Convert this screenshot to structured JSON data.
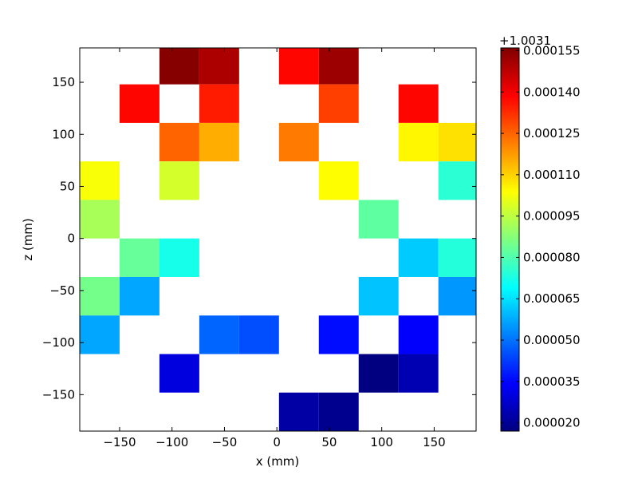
{
  "chart_data": {
    "type": "heatmap",
    "xlabel": "x (mm)",
    "ylabel": "z (mm)",
    "xlim": [
      -188,
      190
    ],
    "ylim": [
      -185,
      183
    ],
    "x_ticks": [
      -150,
      -100,
      -50,
      0,
      50,
      100,
      150
    ],
    "x_tick_labels": [
      "−150",
      "−100",
      "−50",
      "0",
      "50",
      "100",
      "150"
    ],
    "y_ticks": [
      -150,
      -100,
      -50,
      0,
      50,
      100,
      150
    ],
    "y_tick_labels": [
      "−150",
      "−100",
      "−50",
      "0",
      "50",
      "100",
      "150"
    ],
    "x_edges": [
      -188,
      -150,
      -112,
      -74,
      -36,
      2,
      40,
      78,
      116,
      154,
      192
    ],
    "z_edges": [
      -185,
      -148,
      -111,
      -74,
      -37,
      0,
      37,
      74,
      111,
      148,
      185
    ],
    "cells": [
      {
        "col": 2,
        "row": 9,
        "value": 0.000155
      },
      {
        "col": 3,
        "row": 9,
        "value": 0.00015
      },
      {
        "col": 5,
        "row": 9,
        "value": 0.000138
      },
      {
        "col": 6,
        "row": 9,
        "value": 0.000152
      },
      {
        "col": 1,
        "row": 8,
        "value": 0.000138
      },
      {
        "col": 3,
        "row": 8,
        "value": 0.000135
      },
      {
        "col": 6,
        "row": 8,
        "value": 0.00013
      },
      {
        "col": 8,
        "row": 8,
        "value": 0.000138
      },
      {
        "col": 2,
        "row": 7,
        "value": 0.000125
      },
      {
        "col": 3,
        "row": 7,
        "value": 0.000115
      },
      {
        "col": 5,
        "row": 7,
        "value": 0.000122
      },
      {
        "col": 8,
        "row": 7,
        "value": 0.000105
      },
      {
        "col": 9,
        "row": 7,
        "value": 0.000108
      },
      {
        "col": 0,
        "row": 6,
        "value": 0.000103
      },
      {
        "col": 2,
        "row": 6,
        "value": 9.8e-05
      },
      {
        "col": 6,
        "row": 6,
        "value": 0.000104
      },
      {
        "col": 9,
        "row": 6,
        "value": 7.5e-05
      },
      {
        "col": 0,
        "row": 5,
        "value": 9.2e-05
      },
      {
        "col": 7,
        "row": 5,
        "value": 8.2e-05
      },
      {
        "col": 1,
        "row": 4,
        "value": 8.3e-05
      },
      {
        "col": 2,
        "row": 4,
        "value": 7.2e-05
      },
      {
        "col": 8,
        "row": 4,
        "value": 6.2e-05
      },
      {
        "col": 9,
        "row": 4,
        "value": 7.4e-05
      },
      {
        "col": 0,
        "row": 3,
        "value": 8.5e-05
      },
      {
        "col": 1,
        "row": 3,
        "value": 5.7e-05
      },
      {
        "col": 7,
        "row": 3,
        "value": 6.1e-05
      },
      {
        "col": 9,
        "row": 3,
        "value": 5.5e-05
      },
      {
        "col": 0,
        "row": 2,
        "value": 5.7e-05
      },
      {
        "col": 3,
        "row": 2,
        "value": 4.8e-05
      },
      {
        "col": 4,
        "row": 2,
        "value": 4.5e-05
      },
      {
        "col": 6,
        "row": 2,
        "value": 3.6e-05
      },
      {
        "col": 8,
        "row": 2,
        "value": 3.4e-05
      },
      {
        "col": 2,
        "row": 1,
        "value": 3e-05
      },
      {
        "col": 7,
        "row": 1,
        "value": 1.6e-05
      },
      {
        "col": 8,
        "row": 1,
        "value": 2.4e-05
      },
      {
        "col": 5,
        "row": 0,
        "value": 2.2e-05
      },
      {
        "col": 6,
        "row": 0,
        "value": 1.9e-05
      }
    ],
    "colorbar": {
      "offset_label": "+1.0031",
      "vmin": 1.7e-05,
      "vmax": 0.000156,
      "ticks": [
        2e-05,
        3.5e-05,
        5e-05,
        6.5e-05,
        8e-05,
        9.5e-05,
        0.00011,
        0.000125,
        0.00014,
        0.000155
      ],
      "tick_labels": [
        "0.000020",
        "0.000035",
        "0.000050",
        "0.000065",
        "0.000080",
        "0.000095",
        "0.000110",
        "0.000125",
        "0.000140",
        "0.000155"
      ],
      "colormap": "jet"
    }
  }
}
